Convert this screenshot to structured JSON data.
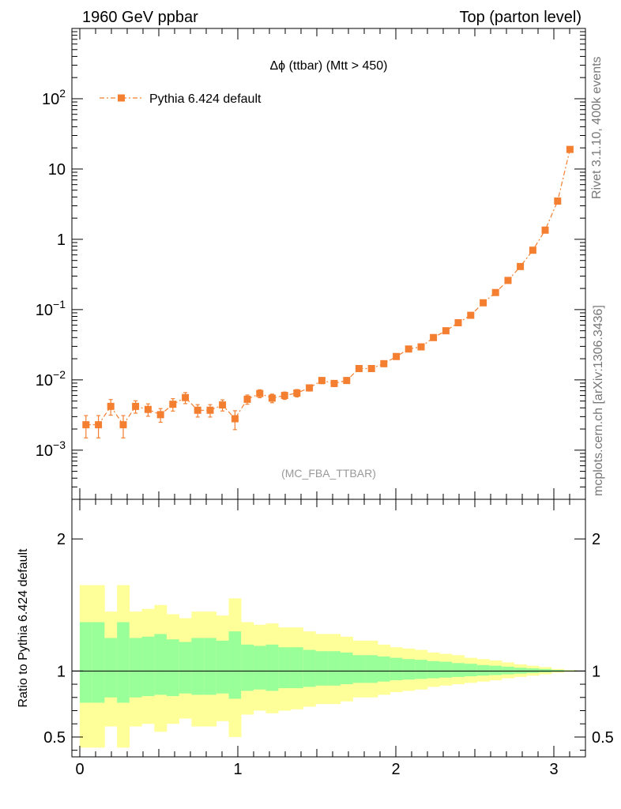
{
  "header": {
    "left": "1960 GeV ppbar",
    "right": "Top (parton level)"
  },
  "side": {
    "rivet": "Rivet 3.1.10,  400k events",
    "mcplots": "mcplots.cern.ch [arXiv:1306.3436]"
  },
  "chart_data": [
    {
      "type": "scatter",
      "title": "Δϕ (ttbar) (Mtt > 450)",
      "watermark": "(MC_FBA_TTBAR)",
      "yscale": "log",
      "xlim": [
        -0.05,
        3.2
      ],
      "ylim": [
        0.0002,
        1000
      ],
      "yticks": [
        {
          "v": 0.001,
          "base": "10",
          "exp": "−3"
        },
        {
          "v": 0.01,
          "base": "10",
          "exp": "−2"
        },
        {
          "v": 0.1,
          "base": "10",
          "exp": "−1"
        },
        {
          "v": 1,
          "base": "1",
          "exp": ""
        },
        {
          "v": 10,
          "base": "10",
          "exp": ""
        },
        {
          "v": 100,
          "base": "10",
          "exp": "2"
        }
      ],
      "legend": {
        "label": "Pythia 6.424 default",
        "position": "top-left",
        "color": "#f47f30"
      },
      "series": [
        {
          "name": "Pythia 6.424 default",
          "color": "#f47f30",
          "x": [
            0.039,
            0.118,
            0.196,
            0.275,
            0.353,
            0.432,
            0.511,
            0.589,
            0.668,
            0.746,
            0.825,
            0.903,
            0.982,
            1.06,
            1.139,
            1.217,
            1.296,
            1.374,
            1.453,
            1.532,
            1.61,
            1.689,
            1.767,
            1.846,
            1.924,
            2.003,
            2.081,
            2.16,
            2.238,
            2.317,
            2.395,
            2.474,
            2.553,
            2.631,
            2.71,
            2.788,
            2.867,
            2.945,
            3.024,
            3.102
          ],
          "y": [
            0.0023,
            0.0023,
            0.0042,
            0.0023,
            0.0042,
            0.0038,
            0.0032,
            0.0045,
            0.0056,
            0.0037,
            0.0037,
            0.0044,
            0.0028,
            0.0053,
            0.0064,
            0.0055,
            0.006,
            0.0065,
            0.0077,
            0.0098,
            0.0089,
            0.0098,
            0.0145,
            0.0145,
            0.017,
            0.0215,
            0.0275,
            0.0295,
            0.04,
            0.05,
            0.065,
            0.083,
            0.125,
            0.175,
            0.26,
            0.41,
            0.7,
            1.35,
            3.5,
            19.0
          ],
          "err_rel": [
            0.35,
            0.35,
            0.25,
            0.35,
            0.2,
            0.2,
            0.22,
            0.2,
            0.18,
            0.2,
            0.2,
            0.18,
            0.3,
            0.15,
            0.13,
            0.14,
            0.12,
            0.12,
            0.1,
            0.1,
            0.1,
            0.09,
            0.07,
            0.07,
            0.06,
            0.05,
            0.05,
            0.05,
            0.04,
            0.04,
            0.035,
            0.03,
            0.025,
            0.02,
            0.018,
            0.015,
            0.012,
            0.01,
            0.008,
            0.005
          ]
        }
      ]
    },
    {
      "type": "area",
      "ylabel": "Ratio to Pythia 6.424 default",
      "xlim": [
        -0.05,
        3.2
      ],
      "ylim": [
        0.35,
        2.3
      ],
      "xticks": [
        {
          "v": 0,
          "label": "0"
        },
        {
          "v": 1,
          "label": "1"
        },
        {
          "v": 2,
          "label": "2"
        },
        {
          "v": 3,
          "label": "3"
        }
      ],
      "yticks": [
        {
          "v": 0.5,
          "label": "0.5"
        },
        {
          "v": 1,
          "label": "1"
        },
        {
          "v": 2,
          "label": "2"
        }
      ],
      "bin_width": 0.0785,
      "bands": {
        "colors": {
          "outer": "#ffff99",
          "inner": "#99ff99"
        },
        "outer_up": [
          0.65,
          0.65,
          0.45,
          0.65,
          0.45,
          0.47,
          0.5,
          0.43,
          0.4,
          0.45,
          0.45,
          0.42,
          0.55,
          0.37,
          0.35,
          0.36,
          0.33,
          0.33,
          0.3,
          0.28,
          0.28,
          0.26,
          0.23,
          0.23,
          0.2,
          0.18,
          0.17,
          0.16,
          0.14,
          0.13,
          0.12,
          0.1,
          0.09,
          0.08,
          0.065,
          0.05,
          0.04,
          0.03,
          0.015,
          0.007
        ],
        "outer_dn": [
          0.58,
          0.58,
          0.42,
          0.58,
          0.42,
          0.4,
          0.46,
          0.4,
          0.36,
          0.42,
          0.42,
          0.38,
          0.5,
          0.33,
          0.3,
          0.32,
          0.3,
          0.29,
          0.27,
          0.25,
          0.25,
          0.23,
          0.2,
          0.2,
          0.18,
          0.16,
          0.15,
          0.14,
          0.12,
          0.11,
          0.1,
          0.09,
          0.08,
          0.07,
          0.055,
          0.045,
          0.035,
          0.025,
          0.013,
          0.006
        ],
        "inner_up": [
          0.37,
          0.37,
          0.25,
          0.37,
          0.25,
          0.26,
          0.28,
          0.24,
          0.22,
          0.25,
          0.25,
          0.23,
          0.3,
          0.2,
          0.19,
          0.2,
          0.18,
          0.18,
          0.16,
          0.15,
          0.15,
          0.14,
          0.12,
          0.12,
          0.11,
          0.1,
          0.09,
          0.085,
          0.075,
          0.07,
          0.06,
          0.055,
          0.045,
          0.04,
          0.033,
          0.025,
          0.02,
          0.015,
          0.008,
          0.004
        ],
        "inner_dn": [
          0.24,
          0.24,
          0.2,
          0.24,
          0.2,
          0.19,
          0.18,
          0.19,
          0.17,
          0.18,
          0.18,
          0.17,
          0.21,
          0.15,
          0.14,
          0.15,
          0.13,
          0.13,
          0.12,
          0.11,
          0.11,
          0.1,
          0.09,
          0.09,
          0.08,
          0.07,
          0.065,
          0.06,
          0.055,
          0.05,
          0.045,
          0.04,
          0.035,
          0.03,
          0.025,
          0.02,
          0.015,
          0.01,
          0.006,
          0.003
        ]
      },
      "reference": 1
    }
  ]
}
